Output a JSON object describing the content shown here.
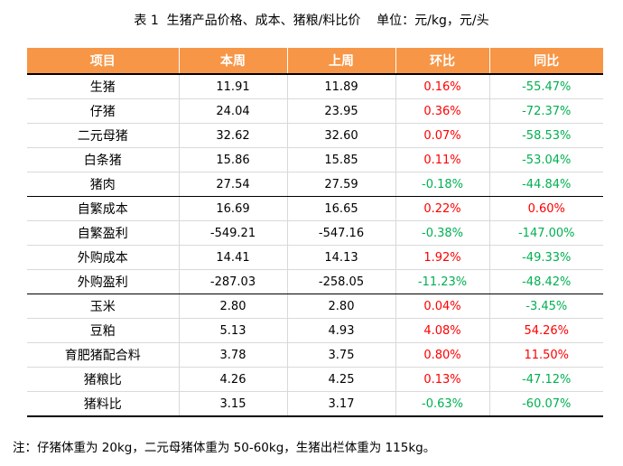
{
  "title": "表 1  生猪产品价格、成本、猪粮/料比价    单位：元/kg，元/头",
  "colors": {
    "header_bg": "#f79646",
    "header_text": "#ffffff",
    "positive": "#ff0000",
    "negative": "#00b050"
  },
  "table": {
    "headers": [
      "项目",
      "本周",
      "上周",
      "环比",
      "同比"
    ],
    "rows": [
      [
        "生猪",
        "11.91",
        "11.89",
        "0.16%",
        "-55.47%"
      ],
      [
        "仔猪",
        "24.04",
        "23.95",
        "0.36%",
        "-72.37%"
      ],
      [
        "二元母猪",
        "32.62",
        "32.60",
        "0.07%",
        "-58.53%"
      ],
      [
        "白条猪",
        "15.86",
        "15.85",
        "0.11%",
        "-53.04%"
      ],
      [
        "猪肉",
        "27.54",
        "27.59",
        "-0.18%",
        "-44.84%"
      ],
      [
        "自繁成本",
        "16.69",
        "16.65",
        "0.22%",
        "0.60%"
      ],
      [
        "自繁盈利",
        "-549.21",
        "-547.16",
        "-0.38%",
        "-147.00%"
      ],
      [
        "外购成本",
        "14.41",
        "14.13",
        "1.92%",
        "-49.33%"
      ],
      [
        "外购盈利",
        "-287.03",
        "-258.05",
        "-11.23%",
        "-48.42%"
      ],
      [
        "玉米",
        "2.80",
        "2.80",
        "0.04%",
        "-3.45%"
      ],
      [
        "豆粕",
        "5.13",
        "4.93",
        "4.08%",
        "54.26%"
      ],
      [
        "育肥猪配合料",
        "3.78",
        "3.75",
        "0.80%",
        "11.50%"
      ],
      [
        "猪粮比",
        "4.26",
        "4.25",
        "0.13%",
        "-47.12%"
      ],
      [
        "猪料比",
        "3.15",
        "3.17",
        "-0.63%",
        "-60.07%"
      ]
    ]
  },
  "note": "注：仔猪体重为 20kg，二元母猪体重为 50-60kg，生猪出栏体重为 115kg。"
}
